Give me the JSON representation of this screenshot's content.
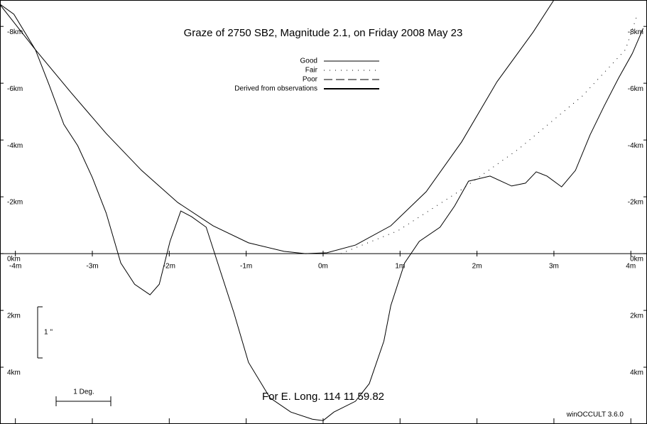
{
  "chart_data": {
    "type": "line",
    "title": "Graze of    2750  SB2,  Magnitude   2.1,  on Friday  2008  May  23",
    "subtitle": "For E. Long.  114 11 59.82",
    "annotations": {
      "vertical_scale": "1 ''",
      "horizontal_scale": "1 Deg.",
      "software": "winOCCULT 3.6.0"
    },
    "xlim": [
      -4.2,
      4.21
    ],
    "ylim": [
      -8.93,
      6
    ],
    "y_reversed": true,
    "xticks": [
      {
        "value": -4,
        "label": "-4m"
      },
      {
        "value": -3,
        "label": "-3m"
      },
      {
        "value": -2,
        "label": "-2m"
      },
      {
        "value": -1,
        "label": "-1m"
      },
      {
        "value": 0,
        "label": "0m"
      },
      {
        "value": 1,
        "label": "1m"
      },
      {
        "value": 2,
        "label": "2m"
      },
      {
        "value": 3,
        "label": "3m"
      },
      {
        "value": 4,
        "label": "4m"
      }
    ],
    "yticks": [
      {
        "value": -8,
        "label": "-8km"
      },
      {
        "value": -6,
        "label": "-6km"
      },
      {
        "value": -4,
        "label": "-4km"
      },
      {
        "value": -2,
        "label": "-2km"
      },
      {
        "value": 0,
        "label": "0km"
      },
      {
        "value": 2,
        "label": "2km"
      },
      {
        "value": 4,
        "label": "4km"
      }
    ],
    "star_path": {
      "color": "#000000",
      "x": [
        -4.21,
        -3.74,
        -3.28,
        -2.82,
        -2.36,
        -1.89,
        -1.43,
        -0.97,
        -0.51,
        -0.23,
        0.05,
        0.42,
        0.88,
        1.34,
        1.8,
        2.26,
        2.73,
        3.0
      ],
      "values": [
        -8.8,
        -7.18,
        -5.68,
        -4.23,
        -2.93,
        -1.8,
        -0.98,
        -0.38,
        -0.08,
        0,
        -0.03,
        -0.3,
        -0.98,
        -2.18,
        -3.93,
        -6.05,
        -7.8,
        -8.93
      ]
    },
    "series": [
      {
        "name": "Good",
        "color": "#000000",
        "dash": "none",
        "width": 1,
        "x": [
          -4.21,
          -4.02,
          -3.74,
          -3.56,
          -3.37,
          -3.19,
          -3.0,
          -2.82,
          -2.63,
          -2.45,
          -2.25,
          -2.13,
          -1.99,
          -1.85,
          -1.71,
          -1.52,
          -1.34,
          -1.16,
          -0.97,
          -0.69,
          -0.42,
          -0.14,
          0,
          0.14,
          0.42,
          0.6,
          0.79,
          0.88,
          1.06,
          1.25,
          1.52,
          1.71,
          1.89,
          2.17,
          2.45,
          2.63,
          2.77,
          2.91,
          3.1,
          3.28,
          3.47,
          3.65,
          3.84,
          4.02,
          4.16
        ],
        "values": [
          -8.8,
          -8.43,
          -7.18,
          -5.93,
          -4.55,
          -3.8,
          -2.68,
          -1.43,
          0.33,
          1.08,
          1.45,
          1.08,
          -0.43,
          -1.5,
          -1.3,
          -0.93,
          0.58,
          2.08,
          3.83,
          5.08,
          5.58,
          5.83,
          5.88,
          5.58,
          5.2,
          4.58,
          3.08,
          1.83,
          0.33,
          -0.43,
          -0.93,
          -1.68,
          -2.55,
          -2.73,
          -2.38,
          -2.48,
          -2.88,
          -2.73,
          -2.35,
          -2.93,
          -4.18,
          -5.18,
          -6.18,
          -7.05,
          -7.93
        ]
      },
      {
        "name": "Fair",
        "color": "#000000",
        "dash": "1,7",
        "width": 1,
        "x": [
          0.23,
          0.97,
          1.76,
          2.54,
          3.37,
          3.93,
          4.07
        ],
        "values": [
          0,
          -0.8,
          -2.18,
          -3.68,
          -5.55,
          -7.18,
          -8.3
        ]
      },
      {
        "name": "Poor",
        "color": "#000000",
        "dash": "12,5",
        "width": 1,
        "x": [],
        "values": []
      },
      {
        "name": "Derived from observations",
        "color": "#000000",
        "dash": "none",
        "width": 2,
        "x": [],
        "values": []
      }
    ]
  }
}
